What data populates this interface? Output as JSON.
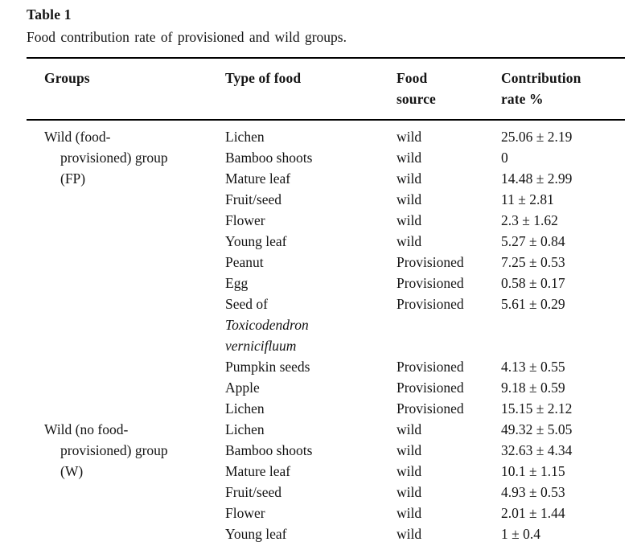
{
  "page": {
    "background": "#ffffff",
    "text_color": "#141414",
    "rule_color": "#000000"
  },
  "table": {
    "title": "Table 1",
    "caption": "Food contribution rate of provisioned and wild groups.",
    "columns": [
      {
        "line1": "Groups",
        "line2": ""
      },
      {
        "line1": "Type of food",
        "line2": ""
      },
      {
        "line1": "Food",
        "line2": "source"
      },
      {
        "line1": "Contribution",
        "line2": "rate %"
      }
    ],
    "rows": [
      {
        "group": "Wild (food-",
        "group_indent": false,
        "food": "Lichen",
        "food_italic": false,
        "source": "wild",
        "rate": "25.06 ± 2.19"
      },
      {
        "group": "provisioned) group",
        "group_indent": true,
        "food": "Bamboo shoots",
        "food_italic": false,
        "source": "wild",
        "rate": "0"
      },
      {
        "group": "(FP)",
        "group_indent": true,
        "food": "Mature leaf",
        "food_italic": false,
        "source": "wild",
        "rate": "14.48 ± 2.99"
      },
      {
        "group": "",
        "group_indent": false,
        "food": "Fruit/seed",
        "food_italic": false,
        "source": "wild",
        "rate": "11 ± 2.81"
      },
      {
        "group": "",
        "group_indent": false,
        "food": "Flower",
        "food_italic": false,
        "source": "wild",
        "rate": "2.3 ± 1.62"
      },
      {
        "group": "",
        "group_indent": false,
        "food": "Young leaf",
        "food_italic": false,
        "source": "wild",
        "rate": "5.27 ± 0.84"
      },
      {
        "group": "",
        "group_indent": false,
        "food": "Peanut",
        "food_italic": false,
        "source": "Provisioned",
        "rate": "7.25 ± 0.53"
      },
      {
        "group": "",
        "group_indent": false,
        "food": "Egg",
        "food_italic": false,
        "source": "Provisioned",
        "rate": "0.58 ± 0.17"
      },
      {
        "group": "",
        "group_indent": false,
        "food": "Seed of",
        "food_italic": false,
        "source": "Provisioned",
        "rate": "5.61 ± 0.29"
      },
      {
        "group": "",
        "group_indent": false,
        "food": "Toxicodendron",
        "food_italic": true,
        "source": "",
        "rate": ""
      },
      {
        "group": "",
        "group_indent": false,
        "food": "vernicifluum",
        "food_italic": true,
        "source": "",
        "rate": ""
      },
      {
        "group": "",
        "group_indent": false,
        "food": "Pumpkin seeds",
        "food_italic": false,
        "source": "Provisioned",
        "rate": "4.13 ± 0.55"
      },
      {
        "group": "",
        "group_indent": false,
        "food": "Apple",
        "food_italic": false,
        "source": "Provisioned",
        "rate": "9.18 ± 0.59"
      },
      {
        "group": "",
        "group_indent": false,
        "food": "Lichen",
        "food_italic": false,
        "source": "Provisioned",
        "rate": "15.15 ± 2.12"
      },
      {
        "group": "Wild (no food-",
        "group_indent": false,
        "food": "Lichen",
        "food_italic": false,
        "source": "wild",
        "rate": "49.32 ± 5.05"
      },
      {
        "group": "provisioned) group",
        "group_indent": true,
        "food": "Bamboo shoots",
        "food_italic": false,
        "source": "wild",
        "rate": "32.63 ± 4.34"
      },
      {
        "group": "(W)",
        "group_indent": true,
        "food": "Mature leaf",
        "food_italic": false,
        "source": "wild",
        "rate": "10.1 ± 1.15"
      },
      {
        "group": "",
        "group_indent": false,
        "food": "Fruit/seed",
        "food_italic": false,
        "source": "wild",
        "rate": "4.93 ± 0.53"
      },
      {
        "group": "",
        "group_indent": false,
        "food": "Flower",
        "food_italic": false,
        "source": "wild",
        "rate": "2.01 ± 1.44"
      },
      {
        "group": "",
        "group_indent": false,
        "food": "Young leaf",
        "food_italic": false,
        "source": "wild",
        "rate": "1 ± 0.4"
      }
    ]
  }
}
